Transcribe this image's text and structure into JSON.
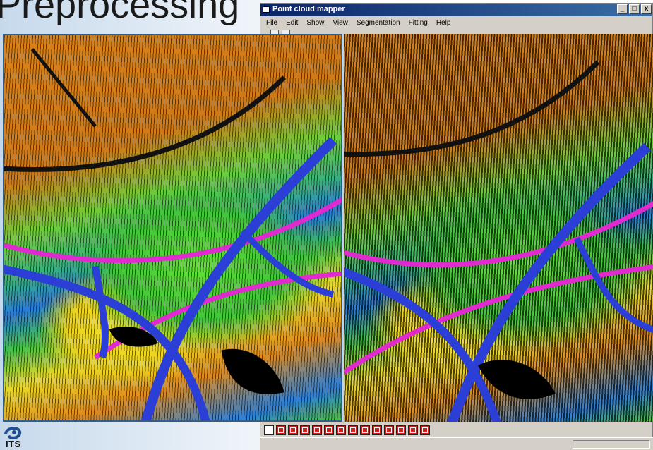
{
  "slide": {
    "title": "Preprocessing"
  },
  "window": {
    "title": "Point cloud mapper",
    "minimize_label": "_",
    "maximize_label": "□",
    "close_label": "x"
  },
  "menu": {
    "items": [
      {
        "label": "File"
      },
      {
        "label": "Edit"
      },
      {
        "label": "Show"
      },
      {
        "label": "View"
      },
      {
        "label": "Segmentation"
      },
      {
        "label": "Fitting"
      },
      {
        "label": "Help"
      }
    ]
  },
  "logo": {
    "text": "ITS"
  },
  "colors": {
    "title_bar": "#0a246a",
    "viewport_frame": "#2f5f8a",
    "road_magenta": "#e02ad0",
    "road_blue": "#2b3fd6",
    "terrain_orange": "#d9821b",
    "terrain_green": "#43c53b",
    "terrain_yellow": "#ecd31f"
  },
  "icons": {
    "toolbar": [
      "select-tool-icon",
      "save-icon"
    ],
    "segmentation_buttons": [
      {
        "name": "segment-tool-1-icon",
        "color": "#ffffff"
      },
      {
        "name": "segment-tool-2-icon",
        "color": "#cc2222"
      },
      {
        "name": "segment-tool-3-icon",
        "color": "#cc2222"
      },
      {
        "name": "segment-tool-4-icon",
        "color": "#cc2222"
      },
      {
        "name": "segment-tool-5-icon",
        "color": "#cc2222"
      },
      {
        "name": "segment-tool-6-icon",
        "color": "#cc2222"
      },
      {
        "name": "segment-tool-7-icon",
        "color": "#cc2222"
      },
      {
        "name": "segment-tool-8-icon",
        "color": "#cc2222"
      },
      {
        "name": "segment-tool-9-icon",
        "color": "#cc2222"
      },
      {
        "name": "segment-tool-10-icon",
        "color": "#cc2222"
      },
      {
        "name": "segment-tool-11-icon",
        "color": "#cc2222"
      },
      {
        "name": "segment-tool-12-icon",
        "color": "#cc2222"
      },
      {
        "name": "segment-tool-13-icon",
        "color": "#cc2222"
      },
      {
        "name": "segment-tool-14-icon",
        "color": "#cc2222"
      }
    ]
  }
}
